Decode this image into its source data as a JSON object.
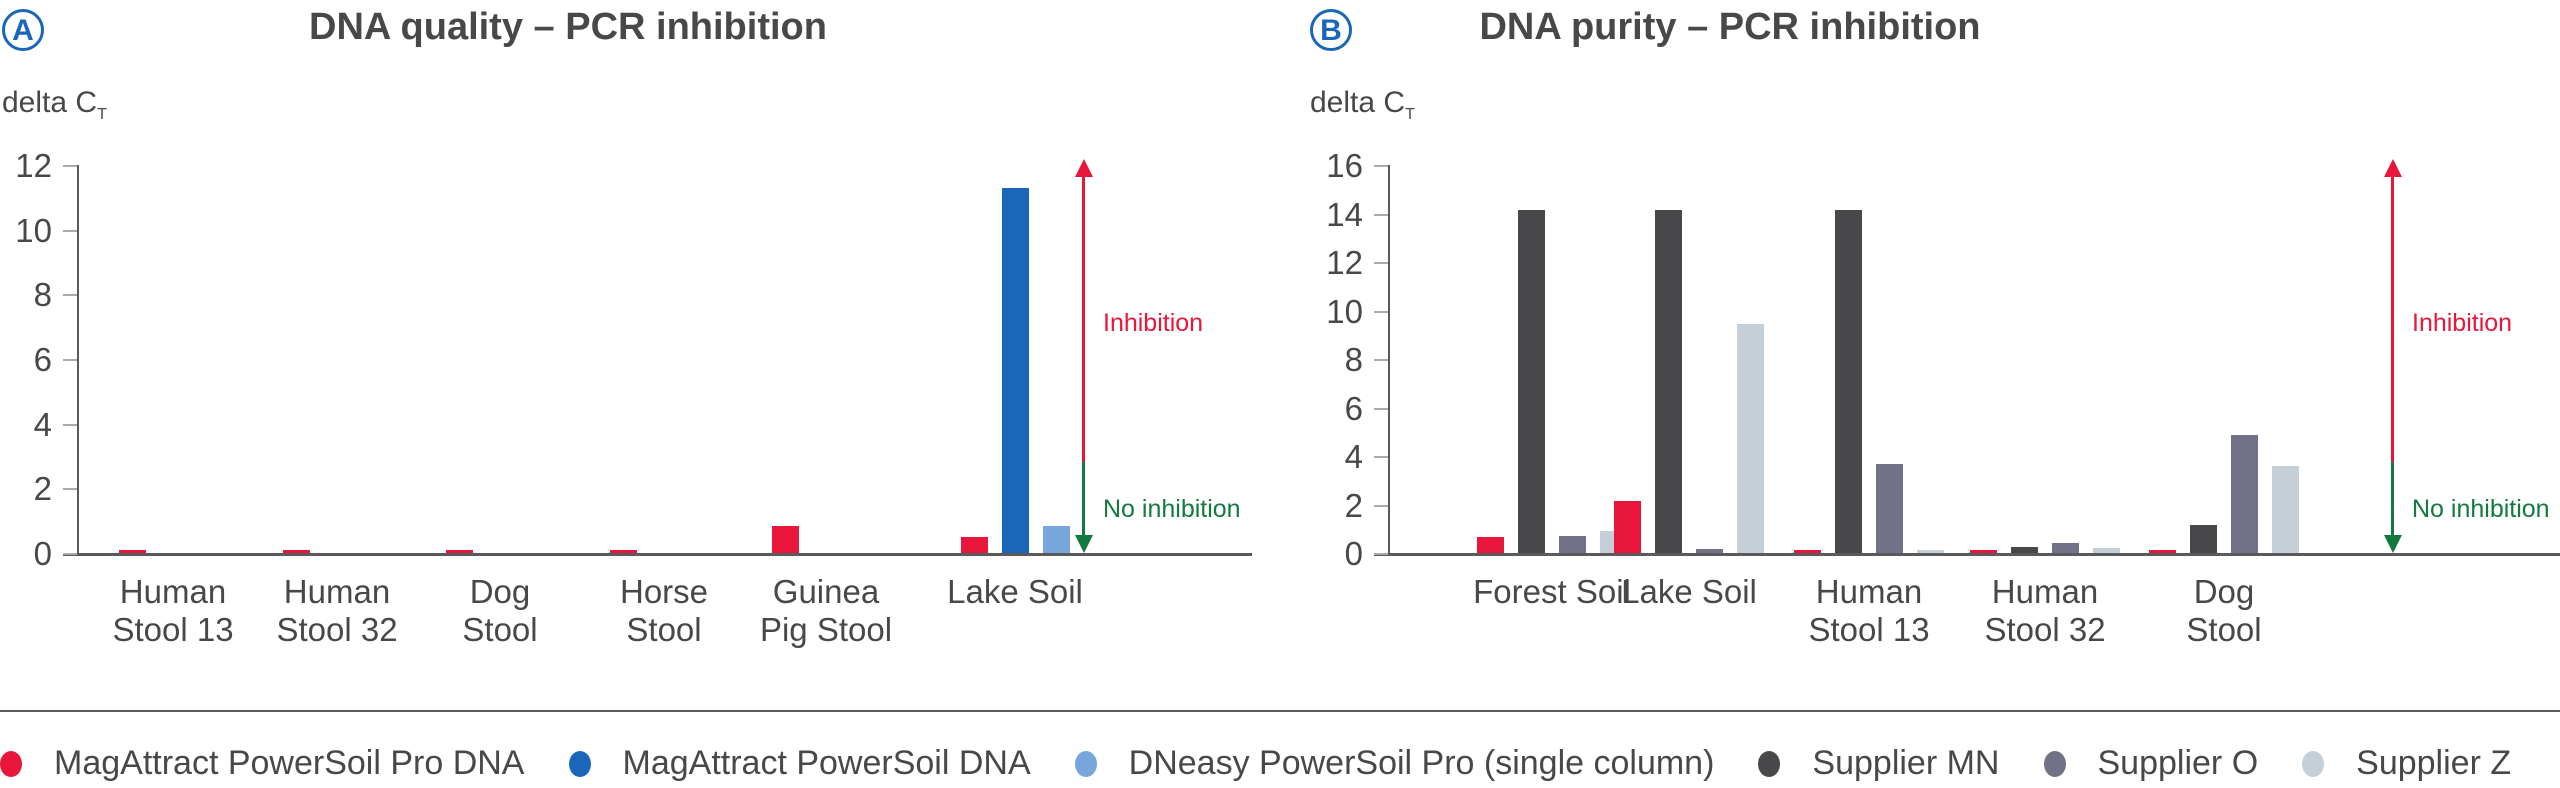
{
  "colors": {
    "magattract_pro": "#e8163a",
    "magattract": "#1a66b8",
    "dneasy": "#78a6dc",
    "supplier_mn": "#48484b",
    "supplier_o": "#717288",
    "supplier_z": "#c4cfd8",
    "inhibition": "#e8163a",
    "no_inhibition": "#137a3f"
  },
  "panels": {
    "a": {
      "badge": "A",
      "title": "DNA quality – PCR inhibition",
      "ylabel": "delta C",
      "ylabel_sub": "T",
      "inhibition": "Inhibition",
      "no_inhibition": "No inhibition"
    },
    "b": {
      "badge": "B",
      "title": "DNA purity – PCR inhibition",
      "ylabel": "delta C",
      "ylabel_sub": "T",
      "inhibition": "Inhibition",
      "no_inhibition": "No inhibition"
    }
  },
  "legend": [
    {
      "label": "MagAttract PowerSoil Pro DNA",
      "color": "#e8163a"
    },
    {
      "label": "MagAttract PowerSoil DNA",
      "color": "#1a66b8"
    },
    {
      "label": "DNeasy PowerSoil Pro (single column)",
      "color": "#78a6dc"
    },
    {
      "label": "Supplier MN",
      "color": "#48484b"
    },
    {
      "label": "Supplier O",
      "color": "#717288"
    },
    {
      "label": "Supplier Z",
      "color": "#c4cfd8"
    }
  ],
  "chart_data": [
    {
      "type": "bar",
      "title": "DNA quality – PCR inhibition",
      "xlabel": "",
      "ylabel": "delta CT",
      "ylim": [
        0,
        12
      ],
      "yticks": [
        0,
        2,
        4,
        6,
        8,
        10,
        12
      ],
      "grid": false,
      "legend_position": "bottom",
      "categories": [
        "Human Stool 13",
        "Human Stool 32",
        "Dog Stool",
        "Horse Stool",
        "Guinea Pig Stool",
        "Lake Soil"
      ],
      "series": [
        {
          "name": "MagAttract PowerSoil Pro DNA",
          "values": [
            0.05,
            0.05,
            0.05,
            0.05,
            0.84,
            0.49
          ]
        },
        {
          "name": "MagAttract PowerSoil DNA",
          "values": [
            null,
            null,
            null,
            null,
            null,
            11.3
          ]
        },
        {
          "name": "DNeasy PowerSoil Pro (single column)",
          "values": [
            null,
            null,
            null,
            null,
            null,
            0.84
          ]
        }
      ],
      "annotations": [
        "Inhibition (upward red arrow)",
        "No inhibition (downward green arrow)"
      ]
    },
    {
      "type": "bar",
      "title": "DNA purity – PCR inhibition",
      "xlabel": "",
      "ylabel": "delta CT",
      "ylim": [
        0,
        16
      ],
      "yticks": [
        0,
        2,
        4,
        6,
        8,
        10,
        12,
        14,
        16
      ],
      "grid": false,
      "legend_position": "bottom",
      "categories": [
        "Forest Soil",
        "Lake Soil",
        "Human Stool 13",
        "Human Stool 32",
        "Dog Stool"
      ],
      "series": [
        {
          "name": "MagAttract PowerSoil Pro DNA",
          "values": [
            0.65,
            2.14,
            0.07,
            0.03,
            0.03
          ]
        },
        {
          "name": "Supplier MN",
          "values": [
            14.14,
            14.14,
            14.14,
            0.24,
            1.15
          ]
        },
        {
          "name": "Supplier O",
          "values": [
            0.72,
            0.15,
            3.66,
            0.41,
            4.85
          ]
        },
        {
          "name": "Supplier Z",
          "values": [
            0.92,
            9.45,
            0.05,
            0.22,
            3.59
          ]
        }
      ],
      "annotations": [
        "Inhibition (upward red arrow)",
        "No inhibition (downward green arrow)"
      ]
    }
  ]
}
